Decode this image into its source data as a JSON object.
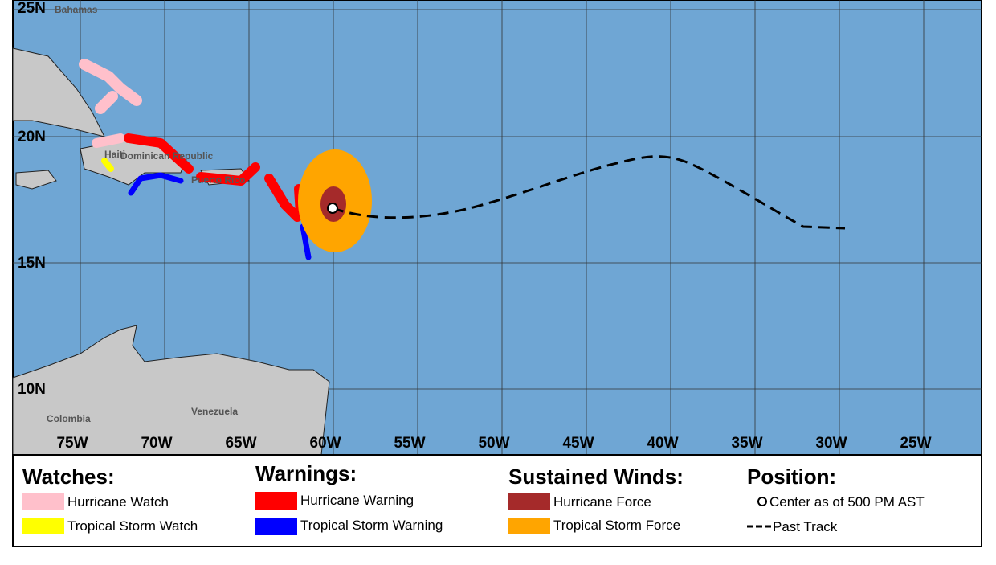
{
  "map": {
    "lat_labels": [
      "25N",
      "20N",
      "15N",
      "10N"
    ],
    "lon_labels": [
      "75W",
      "70W",
      "65W",
      "60W",
      "55W",
      "50W",
      "45W",
      "40W",
      "35W",
      "30W",
      "25W"
    ],
    "places": {
      "bahamas": "Bahamas",
      "haiti": "Haiti",
      "dominican": "Dominican Republic",
      "puerto_rico": "Puerto Rico",
      "venezuela": "Venezuela",
      "colombia": "Colombia"
    }
  },
  "legend": {
    "watches": {
      "title": "Watches:",
      "items": [
        "Hurricane Watch",
        "Tropical Storm Watch"
      ]
    },
    "warnings": {
      "title": "Warnings:",
      "items": [
        "Hurricane Warning",
        "Tropical Storm Warning"
      ]
    },
    "winds": {
      "title": "Sustained Winds:",
      "items": [
        "Hurricane Force",
        "Tropical Storm Force"
      ]
    },
    "position": {
      "title": "Position:",
      "items": [
        "Center as of 500 PM AST",
        "Past Track"
      ]
    }
  }
}
